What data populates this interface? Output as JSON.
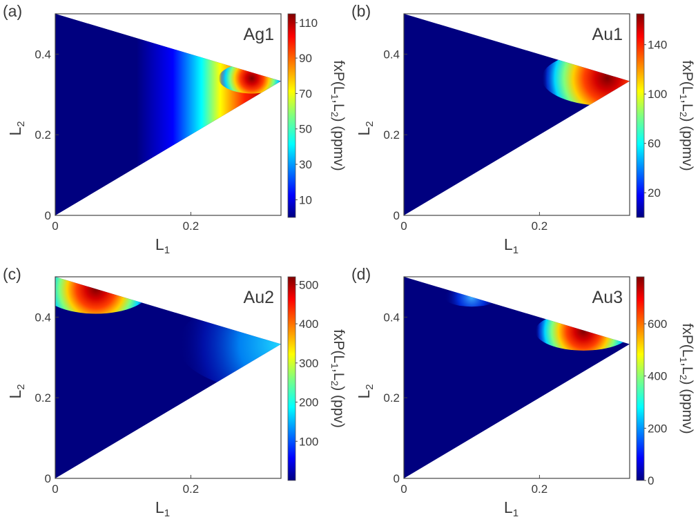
{
  "figure": {
    "chart_data": [
      {
        "type": "heatmap",
        "panel_label": "(a)",
        "sample": "Ag1",
        "xlabel": "L",
        "xlabel_sub": "1",
        "ylabel": "L",
        "ylabel_sub": "2",
        "xlim": [
          0,
          0.333
        ],
        "ylim": [
          0,
          0.5
        ],
        "xticks": [
          "0",
          "0.2"
        ],
        "xtick_values": [
          0,
          0.2
        ],
        "yticks": [
          "0",
          "0.2",
          "0.4"
        ],
        "ytick_values": [
          0,
          0.2,
          0.4
        ],
        "domain": [
          [
            0,
            0
          ],
          [
            0.333,
            0.333
          ],
          [
            0,
            0.5
          ]
        ],
        "colorbar": {
          "label": [
            "fxP(L",
            "1",
            ",L",
            "2",
            ") (ppmv)"
          ],
          "range": [
            0,
            115
          ],
          "ticks": [
            "10",
            "30",
            "50",
            "70",
            "90",
            "110"
          ],
          "tick_values": [
            10,
            30,
            50,
            70,
            90,
            110
          ]
        },
        "peak": {
          "L1": 0.29,
          "L2": 0.34,
          "value": 115
        },
        "notes": "intensity rises toward the right vertex (L1 = L2 = 1/3)"
      },
      {
        "type": "heatmap",
        "panel_label": "(b)",
        "sample": "Au1",
        "xlabel": "L",
        "xlabel_sub": "1",
        "ylabel": "L",
        "ylabel_sub": "2",
        "xlim": [
          0,
          0.333
        ],
        "ylim": [
          0,
          0.5
        ],
        "xticks": [
          "0",
          "0.2"
        ],
        "xtick_values": [
          0,
          0.2
        ],
        "yticks": [
          "0",
          "0.2",
          "0.4"
        ],
        "ytick_values": [
          0,
          0.2,
          0.4
        ],
        "domain": [
          [
            0,
            0
          ],
          [
            0.333,
            0.333
          ],
          [
            0,
            0.5
          ]
        ],
        "colorbar": {
          "label": [
            "fxP(L",
            "1",
            ",L",
            "2",
            ") (ppmv)"
          ],
          "range": [
            0,
            165
          ],
          "ticks": [
            "20",
            "60",
            "100",
            "140"
          ],
          "tick_values": [
            20,
            60,
            100,
            140
          ]
        },
        "peak": {
          "L1": 0.3,
          "L2": 0.34,
          "value": 165
        },
        "notes": "hot spot near the right vertex, along the upper edge"
      },
      {
        "type": "heatmap",
        "panel_label": "(c)",
        "sample": "Au2",
        "xlabel": "L",
        "xlabel_sub": "1",
        "ylabel": "L",
        "ylabel_sub": "2",
        "xlim": [
          0,
          0.333
        ],
        "ylim": [
          0,
          0.5
        ],
        "xticks": [
          "0",
          "0.2"
        ],
        "xtick_values": [
          0,
          0.2
        ],
        "yticks": [
          "0",
          "0.2",
          "0.4"
        ],
        "ytick_values": [
          0,
          0.2,
          0.4
        ],
        "domain": [
          [
            0,
            0
          ],
          [
            0.333,
            0.333
          ],
          [
            0,
            0.5
          ]
        ],
        "colorbar": {
          "label": [
            "fxP(L",
            "1",
            ",L",
            "2",
            ") (ppv)"
          ],
          "range": [
            0,
            520
          ],
          "ticks": [
            "100",
            "200",
            "300",
            "400",
            "500"
          ],
          "tick_values": [
            100,
            200,
            300,
            400,
            500
          ]
        },
        "peak": {
          "L1": 0.06,
          "L2": 0.47,
          "value": 520
        },
        "notes": "hot spot at the upper-left vertex, secondary lobe at the right vertex"
      },
      {
        "type": "heatmap",
        "panel_label": "(d)",
        "sample": "Au3",
        "xlabel": "L",
        "xlabel_sub": "1",
        "ylabel": "L",
        "ylabel_sub": "2",
        "xlim": [
          0,
          0.333
        ],
        "ylim": [
          0,
          0.5
        ],
        "xticks": [
          "0",
          "0.2"
        ],
        "xtick_values": [
          0,
          0.2
        ],
        "yticks": [
          "0",
          "0.2",
          "0.4"
        ],
        "ytick_values": [
          0,
          0.2,
          0.4
        ],
        "domain": [
          [
            0,
            0
          ],
          [
            0.333,
            0.333
          ],
          [
            0,
            0.5
          ]
        ],
        "colorbar": {
          "label": [
            "fxP(L",
            "1",
            ",L",
            "2",
            ") (ppmv)"
          ],
          "range": [
            0,
            780
          ],
          "ticks": [
            "0",
            "200",
            "400",
            "600"
          ],
          "tick_values": [
            0,
            200,
            400,
            600
          ]
        },
        "peak": {
          "L1": 0.265,
          "L2": 0.365,
          "value": 780
        },
        "notes": "hot spot on the upper edge near L1 = 0.26, faint spot near L1 = 0.1"
      }
    ]
  }
}
